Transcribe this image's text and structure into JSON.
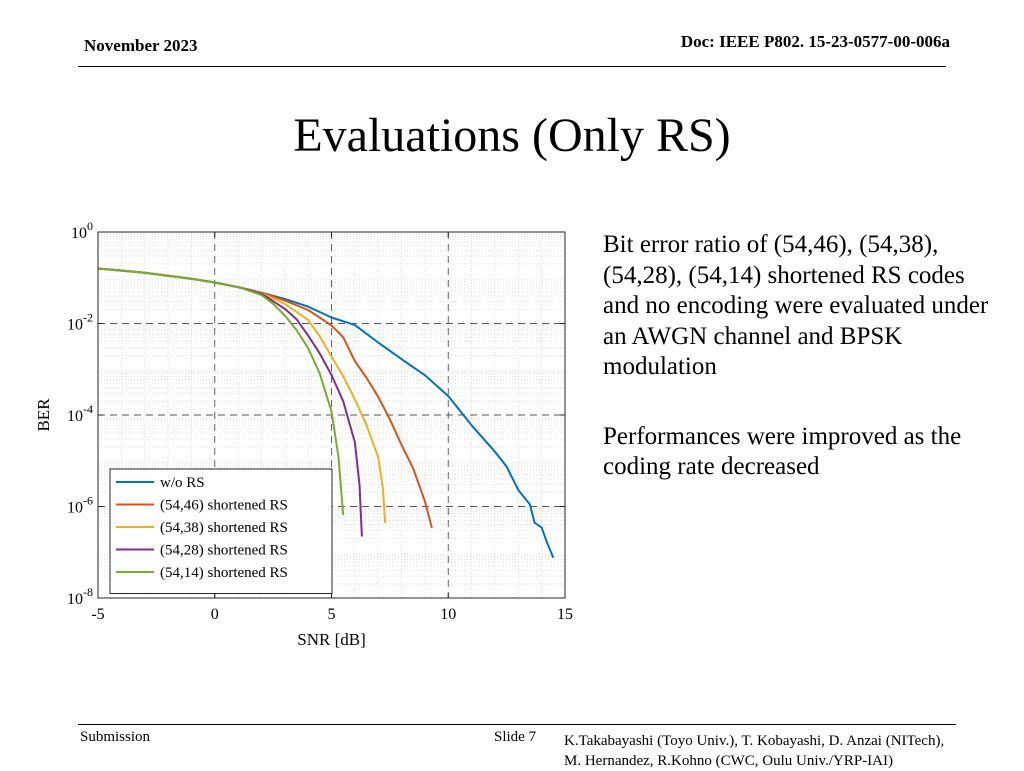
{
  "header": {
    "date": "November 2023",
    "doc": "Doc: IEEE P802. 15-23-0577-00-006a"
  },
  "slide": {
    "title": "Evaluations (Only RS)"
  },
  "description": {
    "paragraph1": "Bit error ratio of (54,46), (54,38), (54,28), (54,14) shortened RS codes  and no encoding were evaluated under an AWGN channel and BPSK modulation",
    "paragraph2": "Performances were improved as the coding rate decreased"
  },
  "footer": {
    "submission": "Submission",
    "slide": "Slide 7",
    "authors_line1": "K.Takabayashi (Toyo Univ.), T. Kobayashi, D. Anzai (NITech),",
    "authors_line2": "M. Hernandez,  R.Kohno (CWC, Oulu Univ./YRP-IAI)"
  },
  "chart_data": {
    "type": "line",
    "xlabel": "SNR [dB]",
    "ylabel": "BER",
    "xlim": [
      -5,
      15
    ],
    "ylim": [
      1e-08,
      1
    ],
    "yscale": "log",
    "xticks": [
      -5,
      0,
      5,
      10,
      15
    ],
    "yticks": [
      {
        "base": "10",
        "exp": "0",
        "value": 1
      },
      {
        "base": "10",
        "exp": "-2",
        "value": 0.01
      },
      {
        "base": "10",
        "exp": "-4",
        "value": 0.0001
      },
      {
        "base": "10",
        "exp": "-6",
        "value": 1e-06
      },
      {
        "base": "10",
        "exp": "-8",
        "value": 1e-08
      }
    ],
    "grid": true,
    "legend_position": "bottom-left",
    "series": [
      {
        "name": "w/o RS",
        "color": "#0072BD",
        "points": [
          [
            -5,
            0.159
          ],
          [
            -4,
            0.145
          ],
          [
            -3,
            0.128
          ],
          [
            -2,
            0.11
          ],
          [
            -1,
            0.095
          ],
          [
            0,
            0.0786
          ],
          [
            1,
            0.0625
          ],
          [
            2,
            0.0473
          ],
          [
            3,
            0.0343
          ],
          [
            4,
            0.0234
          ],
          [
            5,
            0.0135
          ],
          [
            6,
            0.00922
          ],
          [
            7,
            0.00384
          ],
          [
            8,
            0.00166
          ],
          [
            9,
            0.00074
          ],
          [
            10,
            0.000259
          ],
          [
            11,
            5.95e-05
          ],
          [
            12,
            1.58e-05
          ],
          [
            12.5,
            7.5e-06
          ],
          [
            13,
            2.3e-06
          ],
          [
            13.5,
            1.1e-06
          ],
          [
            13.7,
            4.4e-07
          ],
          [
            14,
            3.5e-07
          ],
          [
            14.2,
            1.8e-07
          ],
          [
            14.5,
            7.6e-08
          ]
        ]
      },
      {
        "name": "(54,46) shortened RS",
        "color": "#D95319",
        "points": [
          [
            -5,
            0.159
          ],
          [
            -3,
            0.128
          ],
          [
            -1,
            0.095
          ],
          [
            0,
            0.0786
          ],
          [
            1,
            0.0625
          ],
          [
            2,
            0.0473
          ],
          [
            3,
            0.0316
          ],
          [
            4,
            0.0197
          ],
          [
            5,
            0.0091
          ],
          [
            5.5,
            0.005
          ],
          [
            6,
            0.0015
          ],
          [
            6.5,
            0.00065
          ],
          [
            7,
            0.00025
          ],
          [
            7.5,
            8e-05
          ],
          [
            8,
            2.2e-05
          ],
          [
            8.5,
            6.8e-06
          ],
          [
            9,
            1.3e-06
          ],
          [
            9.3,
            3.4e-07
          ]
        ]
      },
      {
        "name": "(54,38) shortened RS",
        "color": "#EDB120",
        "points": [
          [
            -5,
            0.159
          ],
          [
            -3,
            0.128
          ],
          [
            -1,
            0.095
          ],
          [
            0,
            0.0786
          ],
          [
            1,
            0.0625
          ],
          [
            2,
            0.0465
          ],
          [
            3,
            0.027
          ],
          [
            4,
            0.012
          ],
          [
            4.5,
            0.0052
          ],
          [
            5,
            0.0019
          ],
          [
            5.5,
            0.0007
          ],
          [
            6,
            0.00022
          ],
          [
            6.5,
            6e-05
          ],
          [
            7,
            1.2e-05
          ],
          [
            7.2,
            2.5e-06
          ],
          [
            7.3,
            4.3e-07
          ]
        ]
      },
      {
        "name": "(54,28) shortened RS",
        "color": "#7E2F8E",
        "points": [
          [
            -5,
            0.159
          ],
          [
            -3,
            0.128
          ],
          [
            -1,
            0.095
          ],
          [
            0,
            0.0786
          ],
          [
            1,
            0.0625
          ],
          [
            2,
            0.045
          ],
          [
            3,
            0.021
          ],
          [
            3.5,
            0.0124
          ],
          [
            4,
            0.0055
          ],
          [
            4.5,
            0.0022
          ],
          [
            5,
            0.00075
          ],
          [
            5.5,
            0.0002
          ],
          [
            6,
            2.5e-05
          ],
          [
            6.2,
            3e-06
          ],
          [
            6.3,
            2.2e-07
          ]
        ]
      },
      {
        "name": "(54,14) shortened RS",
        "color": "#77AC30",
        "points": [
          [
            -5,
            0.159
          ],
          [
            -3,
            0.128
          ],
          [
            -1,
            0.095
          ],
          [
            0,
            0.0786
          ],
          [
            1,
            0.0625
          ],
          [
            2,
            0.042
          ],
          [
            2.5,
            0.027
          ],
          [
            3,
            0.015
          ],
          [
            3.5,
            0.0072
          ],
          [
            4,
            0.0029
          ],
          [
            4.5,
            0.0008
          ],
          [
            5,
            0.00012
          ],
          [
            5.3,
            1.2e-05
          ],
          [
            5.5,
            6.5e-07
          ]
        ]
      }
    ]
  }
}
